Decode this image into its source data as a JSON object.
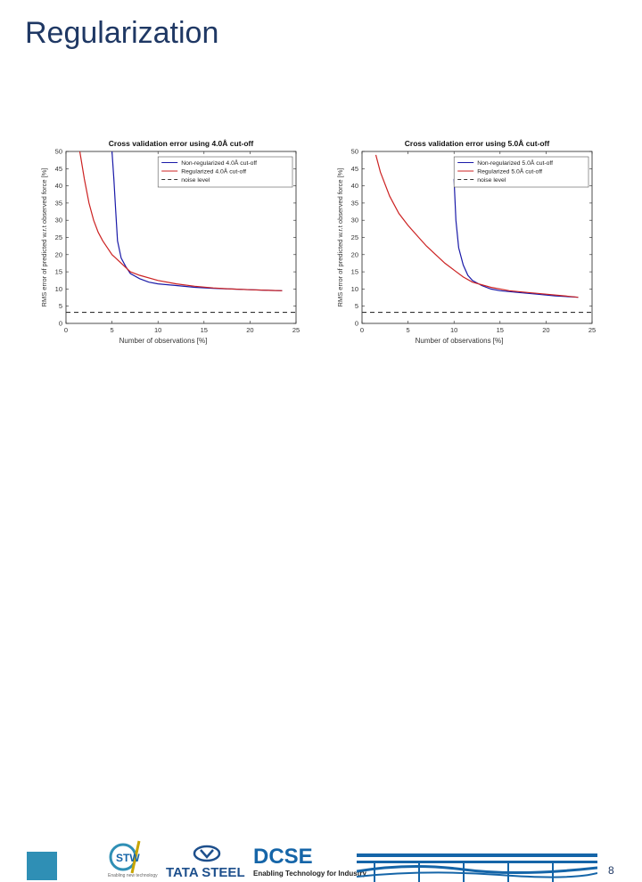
{
  "slide": {
    "title": "Regularization",
    "page_number": "8"
  },
  "footer": {
    "stw_tagline": "Enabling new technology",
    "tata_label": "TATA STEEL",
    "dcse_title": "DCSE",
    "dcse_subtitle": "Enabling Technology for Industry"
  },
  "colors": {
    "title": "#1f3864",
    "series_blue": "#1a1aa8",
    "series_red": "#cc2222",
    "noise": "#333333",
    "brand_blue": "#1565a8"
  },
  "chart_data": [
    {
      "type": "line",
      "title": "Cross validation error using 4.0Å cut-off",
      "xlabel": "Number of observations [%]",
      "ylabel": "RMS error of predicted w.r.t observed force [%]",
      "xlim": [
        0,
        25
      ],
      "ylim": [
        0,
        50
      ],
      "xticks": [
        "0",
        "5",
        "10",
        "15",
        "20",
        "25"
      ],
      "yticks": [
        "0",
        "5",
        "10",
        "15",
        "20",
        "25",
        "30",
        "35",
        "40",
        "45",
        "50"
      ],
      "legend_position": "top-right",
      "series": [
        {
          "name": "Non-regularized 4.0Å cut-off",
          "color": "#1a1aa8",
          "style": "solid",
          "x": [
            5.0,
            5.2,
            5.4,
            5.6,
            6.0,
            6.5,
            7.0,
            8.0,
            9.0,
            10.0,
            12.0,
            14.0,
            16.0,
            18.0,
            20.0,
            22.0,
            23.5
          ],
          "y": [
            50,
            42,
            33,
            24,
            19,
            16.5,
            14.5,
            13,
            12,
            11.5,
            11,
            10.5,
            10.2,
            10,
            9.8,
            9.6,
            9.5
          ]
        },
        {
          "name": "Regularized 4.0Å cut-off",
          "color": "#cc2222",
          "style": "solid",
          "x": [
            1.5,
            2.0,
            2.5,
            3.0,
            3.5,
            4.0,
            4.5,
            5.0,
            6.0,
            7.0,
            8.0,
            10.0,
            12.0,
            14.0,
            16.0,
            18.0,
            20.0,
            22.0,
            23.5
          ],
          "y": [
            50,
            42,
            35,
            30,
            26.5,
            24,
            22,
            20,
            17.5,
            15,
            14,
            12.5,
            11.5,
            10.8,
            10.3,
            10,
            9.8,
            9.6,
            9.5
          ]
        },
        {
          "name": "noise level",
          "color": "#333333",
          "style": "dashed",
          "x": [
            0,
            25
          ],
          "y": [
            3.2,
            3.2
          ]
        }
      ]
    },
    {
      "type": "line",
      "title": "Cross validation error using 5.0Å cut-off",
      "xlabel": "Number of observations [%]",
      "ylabel": "RMS error of predicted w.r.t observed force [%]",
      "xlim": [
        0,
        25
      ],
      "ylim": [
        0,
        50
      ],
      "xticks": [
        "0",
        "5",
        "10",
        "15",
        "20",
        "25"
      ],
      "yticks": [
        "0",
        "5",
        "10",
        "15",
        "20",
        "25",
        "30",
        "35",
        "40",
        "45",
        "50"
      ],
      "legend_position": "top-right",
      "series": [
        {
          "name": "Non-regularized 5.0Å cut-off",
          "color": "#1a1aa8",
          "style": "solid",
          "x": [
            10.0,
            10.2,
            10.5,
            11.0,
            11.5,
            12.0,
            13.0,
            14.0,
            15.0,
            17.0,
            19.0,
            21.0,
            23.5
          ],
          "y": [
            42,
            30,
            22,
            17,
            14,
            12.5,
            11,
            10,
            9.5,
            9,
            8.5,
            8,
            7.6
          ]
        },
        {
          "name": "Regularized 5.0Å cut-off",
          "color": "#cc2222",
          "style": "solid",
          "x": [
            1.5,
            2.0,
            3.0,
            4.0,
            5.0,
            6.0,
            7.0,
            8.0,
            9.0,
            10.0,
            11.0,
            12.0,
            14.0,
            16.0,
            18.0,
            20.0,
            22.0,
            23.5
          ],
          "y": [
            49,
            44,
            37,
            32,
            28.5,
            25.5,
            22.5,
            20,
            17.5,
            15.5,
            13.5,
            12,
            10.5,
            9.5,
            9,
            8.5,
            8,
            7.6
          ]
        },
        {
          "name": "noise level",
          "color": "#333333",
          "style": "dashed",
          "x": [
            0,
            25
          ],
          "y": [
            3.2,
            3.2
          ]
        }
      ]
    }
  ]
}
